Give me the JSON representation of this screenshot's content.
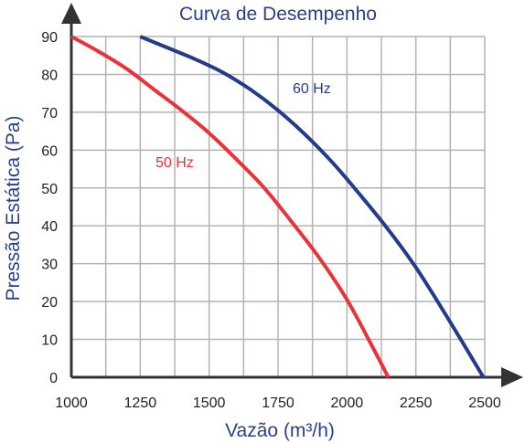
{
  "chart_data": {
    "type": "line",
    "title": "Curva de Desempenho",
    "xlabel": "Vazão (m³/h)",
    "ylabel": "Pressão Estática (Pa)",
    "xlim": [
      1000,
      2500
    ],
    "ylim": [
      0,
      90
    ],
    "x_ticks": [
      1000,
      1250,
      1500,
      1750,
      2000,
      2250,
      2500
    ],
    "y_ticks": [
      0,
      10,
      20,
      30,
      40,
      50,
      60,
      70,
      80,
      90
    ],
    "x_grid_step": 125,
    "y_grid_step": 10,
    "grid": true,
    "legend": "inline labels",
    "series": [
      {
        "name": "50 Hz",
        "color": "#e8333b",
        "x": [
          1000,
          1100,
          1200,
          1300,
          1400,
          1500,
          1600,
          1700,
          1800,
          1900,
          2000,
          2100,
          2150
        ],
        "y": [
          90,
          86,
          81.5,
          76,
          70.5,
          64.5,
          57.5,
          50,
          41,
          31.5,
          20.5,
          7,
          0
        ]
      },
      {
        "name": "60 Hz",
        "color": "#243b8a",
        "x": [
          1250,
          1350,
          1450,
          1550,
          1650,
          1750,
          1850,
          1950,
          2050,
          2150,
          2250,
          2350,
          2450,
          2495
        ],
        "y": [
          90,
          87,
          84,
          80.5,
          76,
          70.5,
          64,
          56.5,
          48,
          39,
          29,
          17.5,
          5.5,
          0
        ]
      }
    ]
  }
}
